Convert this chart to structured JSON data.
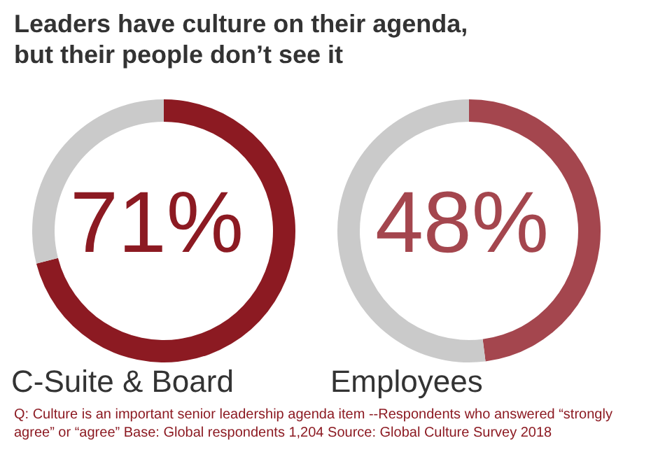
{
  "chart_data": [
    {
      "type": "donut",
      "title": "Leaders have culture on their agenda, but their people don’t see it",
      "xlabel": "C-Suite & Board",
      "categories": [
        null,
        null
      ],
      "values": [
        71,
        29
      ],
      "colors": [
        "#8c1a22",
        "#cacaca"
      ],
      "annotations": [
        "71%",
        "Q: Culture is an important senior leadership agenda item  --Respondents who answered “strongly agree” or “agree” Base: Global respondents 1,204 Source: Global Culture Survey 2018"
      ]
    },
    {
      "type": "donut",
      "xlabel": "Employees",
      "categories": [
        null,
        null
      ],
      "values": [
        48,
        52
      ],
      "colors": [
        "#a4464e",
        "#cacaca"
      ],
      "annotations": [
        "48%"
      ]
    }
  ]
}
